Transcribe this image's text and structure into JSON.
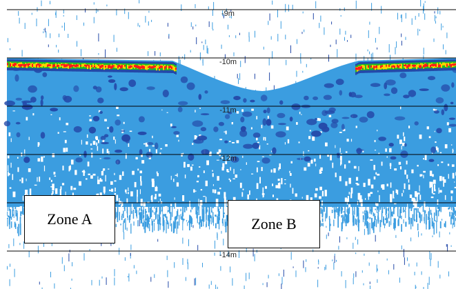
{
  "depth_labels": [
    "-9m",
    "-10m",
    "-11m",
    "-12m",
    "-14m"
  ],
  "zones": {
    "zone_a": "Zone A",
    "zone_b": "Zone B"
  },
  "colors": {
    "background": "#ffffff",
    "water_echo": "#3b9de0",
    "dense_echo": "#2449a8",
    "strong_echo": "#ff1a1a",
    "medium_echo": "#ffd200",
    "weak_echo": "#22bb22",
    "depth_line": "#000000"
  }
}
